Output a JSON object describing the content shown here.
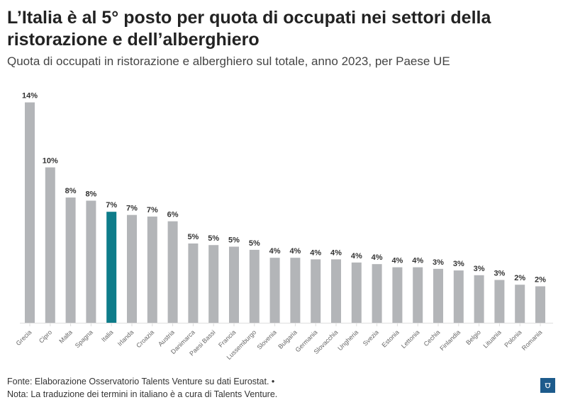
{
  "title": "L’Italia è al 5° posto per quota di occupati nei settori della ristorazione e dell’alberghiero",
  "subtitle": "Quota di occupati in ristorazione e alberghiero sul totale, anno 2023, per Paese UE",
  "footer": {
    "source": "Fonte: Elaborazione Osservatorio Talents Venture su dati Eurostat. •",
    "note": "Nota: La traduzione dei termini in italiano è a cura di Talents Venture.",
    "logo": "TV"
  },
  "colors": {
    "default": "#b3b5b8",
    "highlight": "#0e7c8a"
  },
  "chart_data": {
    "type": "bar",
    "title": "L’Italia è al 5° posto per quota di occupati nei settori della ristorazione e dell’alberghiero",
    "subtitle": "Quota di occupati in ristorazione e alberghiero sul totale, anno 2023, per Paese UE",
    "categories": [
      "Grecia",
      "Cipro",
      "Malta",
      "Spagna",
      "Italia",
      "Irlanda",
      "Croazia",
      "Austria",
      "Danimarca",
      "Paesi Bassi",
      "Francia",
      "Lussemburgo",
      "Slovenia",
      "Bulgaria",
      "Germania",
      "Slovacchia",
      "Ungheria",
      "Svezia",
      "Estonia",
      "Lettonia",
      "Cechia",
      "Finlandia",
      "Belgio",
      "Lituania",
      "Polonia",
      "Romania"
    ],
    "values": [
      13.9,
      9.8,
      7.9,
      7.7,
      7.0,
      6.8,
      6.7,
      6.4,
      5.0,
      4.9,
      4.8,
      4.6,
      4.1,
      4.1,
      4.0,
      4.0,
      3.8,
      3.7,
      3.5,
      3.5,
      3.4,
      3.3,
      3.0,
      2.7,
      2.4,
      2.3
    ],
    "data_labels": [
      "14%",
      "10%",
      "8%",
      "8%",
      "7%",
      "7%",
      "7%",
      "6%",
      "5%",
      "5%",
      "5%",
      "5%",
      "4%",
      "4%",
      "4%",
      "4%",
      "4%",
      "4%",
      "4%",
      "4%",
      "3%",
      "3%",
      "3%",
      "3%",
      "2%",
      "2%"
    ],
    "highlight": "Italia",
    "ylim": [
      0,
      14
    ],
    "grid": false,
    "xlabel": "",
    "ylabel": ""
  }
}
